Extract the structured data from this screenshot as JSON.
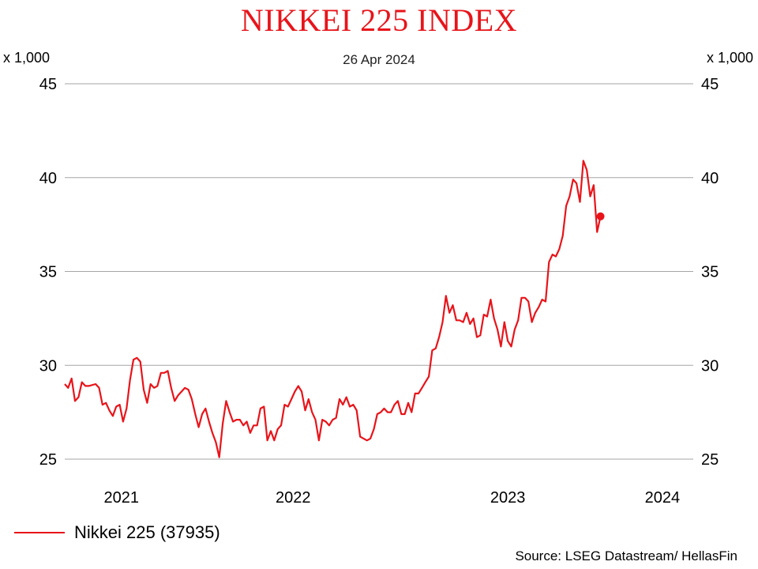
{
  "chart_data": {
    "type": "line",
    "title": "NIKKEI 225 INDEX",
    "subtitle": "26 Apr 2024",
    "y_unit_label": "x 1,000",
    "ylim": [
      25,
      45
    ],
    "yticks": [
      "45",
      "40",
      "35",
      "30",
      "25"
    ],
    "xlim": [
      2020.67,
      2024.33
    ],
    "xticks": [
      {
        "label": "2021",
        "value": 2021.0
      },
      {
        "label": "2022",
        "value": 2022.0
      },
      {
        "label": "2023",
        "value": 2023.0
      },
      {
        "label": "2024",
        "value": 2024.0
      }
    ],
    "grid": true,
    "legend_position": "bottom-left",
    "series": [
      {
        "name": "Nikkei 225 (37935)",
        "color": "#e8141a",
        "last_value": 37.935,
        "points": [
          [
            2020.67,
            29.0
          ],
          [
            2020.69,
            28.8
          ],
          [
            2020.71,
            29.3
          ],
          [
            2020.73,
            28.1
          ],
          [
            2020.75,
            28.3
          ],
          [
            2020.77,
            29.1
          ],
          [
            2020.79,
            28.9
          ],
          [
            2020.81,
            28.9
          ],
          [
            2020.85,
            29.0
          ],
          [
            2020.87,
            28.8
          ],
          [
            2020.89,
            27.9
          ],
          [
            2020.91,
            28.0
          ],
          [
            2020.93,
            27.6
          ],
          [
            2020.95,
            27.3
          ],
          [
            2020.97,
            27.8
          ],
          [
            2020.99,
            27.9
          ],
          [
            2021.01,
            27.0
          ],
          [
            2021.03,
            27.7
          ],
          [
            2021.05,
            29.2
          ],
          [
            2021.07,
            30.3
          ],
          [
            2021.09,
            30.4
          ],
          [
            2021.11,
            30.2
          ],
          [
            2021.13,
            28.7
          ],
          [
            2021.15,
            28.0
          ],
          [
            2021.17,
            29.0
          ],
          [
            2021.19,
            28.8
          ],
          [
            2021.21,
            28.9
          ],
          [
            2021.23,
            29.6
          ],
          [
            2021.25,
            29.6
          ],
          [
            2021.27,
            29.7
          ],
          [
            2021.29,
            28.8
          ],
          [
            2021.31,
            28.1
          ],
          [
            2021.33,
            28.4
          ],
          [
            2021.35,
            28.6
          ],
          [
            2021.37,
            28.8
          ],
          [
            2021.39,
            28.7
          ],
          [
            2021.41,
            28.2
          ],
          [
            2021.43,
            27.4
          ],
          [
            2021.45,
            26.7
          ],
          [
            2021.47,
            27.4
          ],
          [
            2021.49,
            27.7
          ],
          [
            2021.51,
            27.0
          ],
          [
            2021.53,
            26.4
          ],
          [
            2021.55,
            25.9
          ],
          [
            2021.57,
            25.1
          ],
          [
            2021.59,
            26.9
          ],
          [
            2021.61,
            28.1
          ],
          [
            2021.63,
            27.5
          ],
          [
            2021.65,
            27.0
          ],
          [
            2021.67,
            27.1
          ],
          [
            2021.69,
            27.1
          ],
          [
            2021.71,
            26.8
          ],
          [
            2021.73,
            27.0
          ],
          [
            2021.75,
            26.4
          ],
          [
            2021.77,
            26.8
          ],
          [
            2021.79,
            26.8
          ],
          [
            2021.81,
            27.7
          ],
          [
            2021.83,
            27.8
          ],
          [
            2021.85,
            26.0
          ],
          [
            2021.87,
            26.5
          ],
          [
            2021.89,
            26.0
          ],
          [
            2021.91,
            26.6
          ],
          [
            2021.93,
            26.8
          ],
          [
            2021.95,
            27.9
          ],
          [
            2021.97,
            27.8
          ],
          [
            2021.99,
            28.2
          ],
          [
            2022.01,
            28.6
          ],
          [
            2022.03,
            28.9
          ],
          [
            2022.05,
            28.6
          ],
          [
            2022.07,
            27.6
          ],
          [
            2022.09,
            28.2
          ],
          [
            2022.11,
            27.5
          ],
          [
            2022.13,
            27.1
          ],
          [
            2022.15,
            26.0
          ],
          [
            2022.17,
            27.1
          ],
          [
            2022.19,
            27.0
          ],
          [
            2022.21,
            26.8
          ],
          [
            2022.23,
            27.1
          ],
          [
            2022.25,
            27.2
          ],
          [
            2022.27,
            28.2
          ],
          [
            2022.29,
            27.9
          ],
          [
            2022.31,
            28.3
          ],
          [
            2022.33,
            27.8
          ],
          [
            2022.35,
            27.9
          ],
          [
            2022.37,
            27.6
          ],
          [
            2022.39,
            26.2
          ],
          [
            2022.41,
            26.1
          ],
          [
            2022.43,
            26.0
          ],
          [
            2022.45,
            26.1
          ],
          [
            2022.47,
            26.6
          ],
          [
            2022.49,
            27.4
          ],
          [
            2022.51,
            27.5
          ],
          [
            2022.53,
            27.7
          ],
          [
            2022.55,
            27.5
          ],
          [
            2022.57,
            27.5
          ],
          [
            2022.59,
            27.9
          ],
          [
            2022.61,
            28.1
          ],
          [
            2022.63,
            27.4
          ],
          [
            2022.65,
            27.4
          ],
          [
            2022.67,
            28.0
          ],
          [
            2022.69,
            27.5
          ],
          [
            2022.71,
            28.5
          ],
          [
            2022.73,
            28.5
          ],
          [
            2022.75,
            28.8
          ],
          [
            2022.77,
            29.1
          ],
          [
            2022.79,
            29.4
          ],
          [
            2022.81,
            30.8
          ],
          [
            2022.83,
            30.9
          ],
          [
            2022.85,
            31.5
          ],
          [
            2022.87,
            32.3
          ],
          [
            2022.89,
            33.7
          ],
          [
            2022.91,
            32.8
          ],
          [
            2022.93,
            33.2
          ],
          [
            2022.95,
            32.4
          ],
          [
            2022.97,
            32.4
          ],
          [
            2022.99,
            32.3
          ],
          [
            2023.01,
            32.8
          ],
          [
            2023.03,
            32.2
          ],
          [
            2023.05,
            32.5
          ],
          [
            2023.07,
            31.5
          ],
          [
            2023.09,
            31.6
          ],
          [
            2023.11,
            32.7
          ],
          [
            2023.13,
            32.6
          ],
          [
            2023.15,
            33.5
          ],
          [
            2023.17,
            32.5
          ],
          [
            2023.19,
            31.9
          ],
          [
            2023.21,
            31.0
          ],
          [
            2023.23,
            32.3
          ],
          [
            2023.25,
            31.3
          ],
          [
            2023.27,
            31.0
          ],
          [
            2023.29,
            31.9
          ],
          [
            2023.31,
            32.4
          ],
          [
            2023.33,
            33.6
          ],
          [
            2023.35,
            33.6
          ],
          [
            2023.37,
            33.4
          ],
          [
            2023.39,
            32.3
          ],
          [
            2023.41,
            32.8
          ],
          [
            2023.43,
            33.1
          ],
          [
            2023.45,
            33.5
          ],
          [
            2023.47,
            33.4
          ],
          [
            2023.49,
            35.5
          ],
          [
            2023.51,
            35.9
          ],
          [
            2023.53,
            35.8
          ],
          [
            2023.55,
            36.2
          ],
          [
            2023.57,
            36.9
          ],
          [
            2023.59,
            38.5
          ],
          [
            2023.61,
            39.0
          ],
          [
            2023.63,
            39.9
          ],
          [
            2023.65,
            39.7
          ],
          [
            2023.67,
            38.7
          ],
          [
            2023.69,
            40.9
          ],
          [
            2023.71,
            40.4
          ],
          [
            2023.73,
            39.0
          ],
          [
            2023.75,
            39.6
          ],
          [
            2023.77,
            37.1
          ],
          [
            2023.79,
            37.935
          ]
        ]
      }
    ]
  },
  "legend": {
    "label": "Nikkei 225 (37935)"
  },
  "footer": {
    "source": "Source: LSEG Datastream/ HellasFin"
  }
}
